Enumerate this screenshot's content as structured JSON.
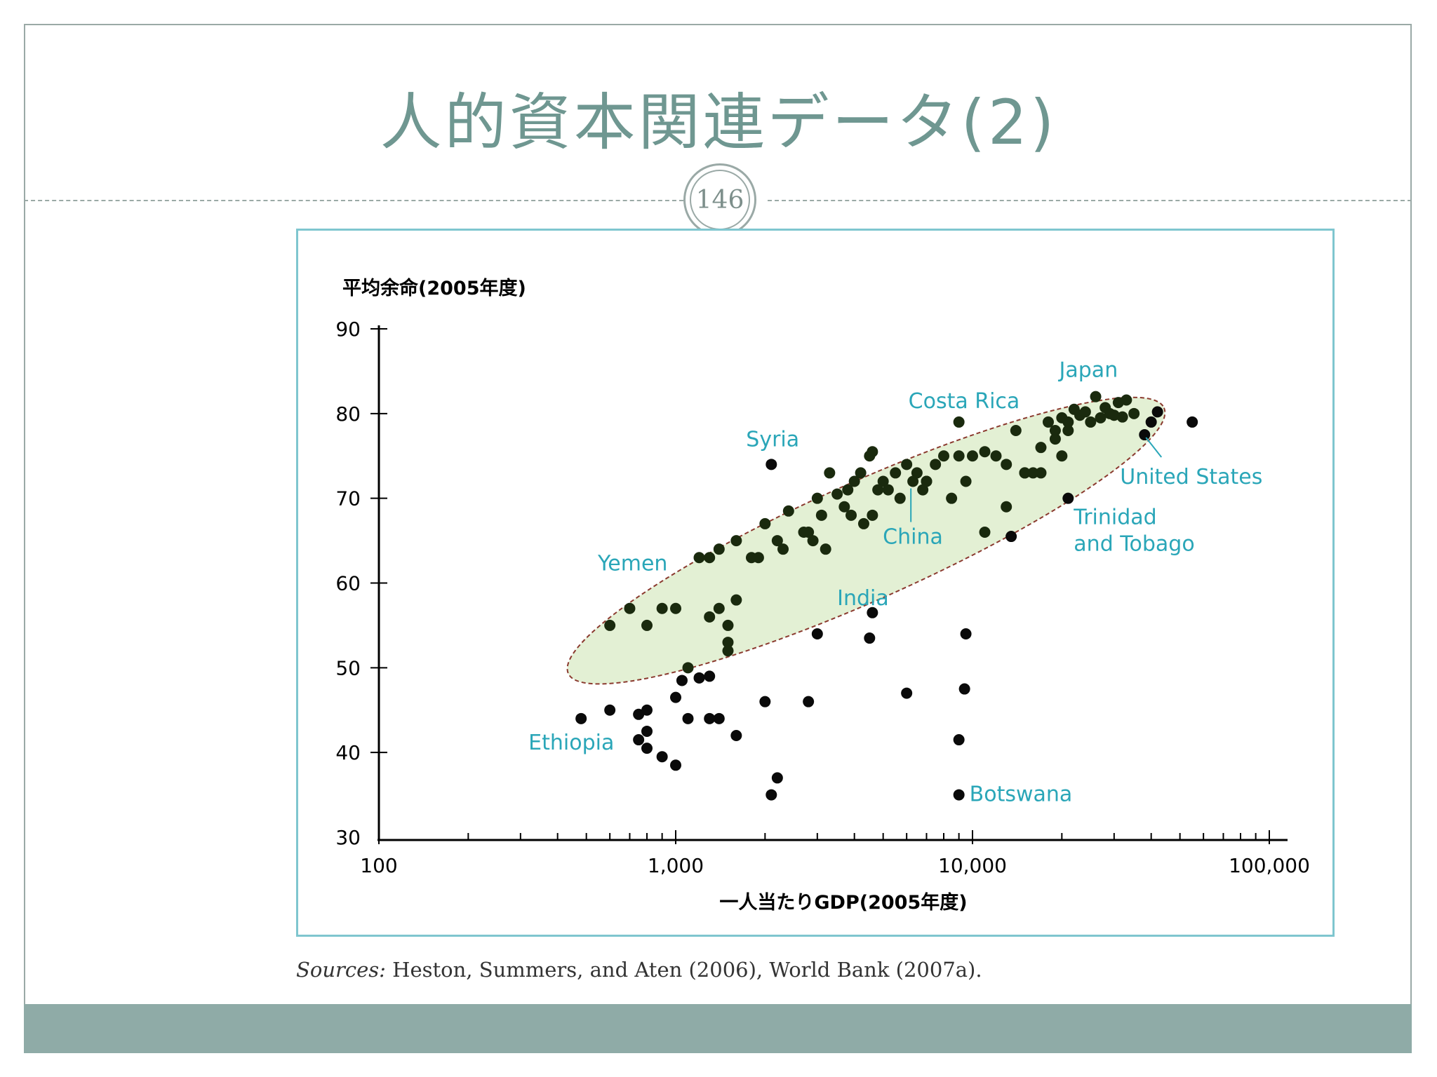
{
  "slide": {
    "title": "人的資本関連データ(2)",
    "page_number": "146",
    "sources_label": "Sources:",
    "sources_text": " Heston, Summers, and Aten (2006), World Bank (2007a)."
  },
  "colors": {
    "title": "#6f9791",
    "frame": "#7fc6cf",
    "footer": "#8faba7",
    "annotation": "#2aa6b8",
    "ellipse_fill": "#e3f0d4",
    "ellipse_stroke": "#8b3a2f",
    "point": "#0a0a0a",
    "point_in_ellipse": "#1a2a0e"
  },
  "chart_data": {
    "type": "scatter",
    "title": "",
    "ylabel": "平均余命(2005年度)",
    "xlabel": "一人当たりGDP(2005年度)",
    "x_scale": "log",
    "xlim": [
      100,
      120000
    ],
    "ylim": [
      30,
      90
    ],
    "x_ticks": [
      100,
      1000,
      10000,
      100000
    ],
    "x_tick_labels": [
      "100",
      "1,000",
      "10,000",
      "100,000"
    ],
    "y_ticks": [
      30,
      40,
      50,
      60,
      70,
      80,
      90
    ],
    "y_tick_labels": [
      "30",
      "40",
      "50",
      "60",
      "70",
      "80",
      "90"
    ],
    "highlight_ellipse": {
      "x_range": [
        480,
        40000
      ],
      "y_range": [
        50,
        80
      ]
    },
    "labels": [
      {
        "text": "Japan",
        "x": 26000,
        "y": 82
      },
      {
        "text": "Costa Rica",
        "x": 9000,
        "y": 79
      },
      {
        "text": "Syria",
        "x": 2100,
        "y": 74
      },
      {
        "text": "United States",
        "x": 38000,
        "y": 78
      },
      {
        "text": "Trinidad",
        "x": 21000,
        "y": 70
      },
      {
        "text": "and Tobago",
        "x": 21000,
        "y": 70
      },
      {
        "text": "China",
        "x": 6200,
        "y": 72
      },
      {
        "text": "India",
        "x": 3500,
        "y": 64
      },
      {
        "text": "Yemen",
        "x": 1050,
        "y": 62
      },
      {
        "text": "Ethiopia",
        "x": 480,
        "y": 44
      },
      {
        "text": "Botswana",
        "x": 9000,
        "y": 35
      }
    ],
    "series": [
      {
        "points": [
          [
            26000,
            82
          ],
          [
            22000,
            80.5
          ],
          [
            24000,
            80.2
          ],
          [
            28000,
            80.7
          ],
          [
            31000,
            81.3
          ],
          [
            33000,
            81.6
          ],
          [
            29000,
            80
          ],
          [
            27000,
            79.5
          ],
          [
            25000,
            79
          ],
          [
            30000,
            79.8
          ],
          [
            32000,
            79.6
          ],
          [
            35000,
            80
          ],
          [
            23000,
            79.8
          ],
          [
            20000,
            79.5
          ],
          [
            18000,
            79
          ],
          [
            19000,
            78
          ],
          [
            21000,
            78
          ],
          [
            17000,
            76
          ],
          [
            14000,
            78
          ],
          [
            12000,
            75
          ],
          [
            11000,
            75.5
          ],
          [
            10000,
            75
          ],
          [
            13000,
            74
          ],
          [
            15000,
            73
          ],
          [
            16000,
            73
          ],
          [
            9000,
            79
          ],
          [
            8000,
            75
          ],
          [
            7500,
            74
          ],
          [
            7000,
            72
          ],
          [
            6500,
            73
          ],
          [
            6000,
            74
          ],
          [
            5500,
            73
          ],
          [
            5000,
            72
          ],
          [
            4800,
            71
          ],
          [
            4500,
            75
          ],
          [
            4600,
            75.5
          ],
          [
            4200,
            73
          ],
          [
            4000,
            72
          ],
          [
            3800,
            71
          ],
          [
            3500,
            70.5
          ],
          [
            3300,
            73
          ],
          [
            3000,
            70
          ],
          [
            3100,
            68
          ],
          [
            2800,
            66
          ],
          [
            2400,
            68.5
          ],
          [
            2200,
            65
          ],
          [
            2300,
            64
          ],
          [
            2000,
            67
          ],
          [
            1800,
            63
          ],
          [
            1900,
            63
          ],
          [
            1600,
            65
          ],
          [
            1400,
            64
          ],
          [
            1300,
            63
          ],
          [
            1200,
            63
          ],
          [
            1000,
            57
          ],
          [
            900,
            57
          ],
          [
            800,
            55
          ],
          [
            700,
            57
          ],
          [
            600,
            55
          ],
          [
            1100,
            50
          ],
          [
            1300,
            56
          ],
          [
            1400,
            57
          ],
          [
            1500,
            55
          ],
          [
            1500,
            52
          ],
          [
            1500,
            53
          ],
          [
            1600,
            58
          ],
          [
            9000,
            75
          ],
          [
            8500,
            70
          ],
          [
            7000,
            72
          ],
          [
            6800,
            71
          ],
          [
            6300,
            72
          ],
          [
            5700,
            70
          ],
          [
            5200,
            71
          ],
          [
            4600,
            68
          ],
          [
            4300,
            67
          ],
          [
            3900,
            68
          ],
          [
            3700,
            69
          ],
          [
            2700,
            66
          ],
          [
            2900,
            65
          ],
          [
            3200,
            64
          ],
          [
            11000,
            66
          ],
          [
            13000,
            69
          ],
          [
            15000,
            73
          ],
          [
            17000,
            73
          ],
          [
            20000,
            75
          ],
          [
            9500,
            72
          ],
          [
            21000,
            79
          ],
          [
            19000,
            77
          ]
        ]
      },
      {
        "points": [
          [
            2100,
            74
          ],
          [
            3000,
            54
          ],
          [
            4600,
            56.5
          ],
          [
            4500,
            53.5
          ],
          [
            9500,
            54
          ],
          [
            9400,
            47.5
          ],
          [
            6000,
            47
          ],
          [
            2800,
            46
          ],
          [
            2000,
            46
          ],
          [
            1600,
            42
          ],
          [
            1400,
            44
          ],
          [
            1300,
            44
          ],
          [
            1100,
            44
          ],
          [
            1000,
            46.5
          ],
          [
            1000,
            38.5
          ],
          [
            900,
            39.5
          ],
          [
            800,
            40.5
          ],
          [
            800,
            42.5
          ],
          [
            750,
            41.5
          ],
          [
            800,
            45
          ],
          [
            750,
            44.5
          ],
          [
            600,
            45
          ],
          [
            480,
            44
          ],
          [
            1050,
            48.5
          ],
          [
            1200,
            48.8
          ],
          [
            1300,
            49
          ],
          [
            2100,
            35
          ],
          [
            2200,
            37
          ],
          [
            9000,
            41.5
          ],
          [
            9000,
            35
          ],
          [
            38000,
            77.5
          ],
          [
            40000,
            79
          ],
          [
            42000,
            80.2
          ],
          [
            55000,
            79
          ],
          [
            21000,
            70
          ],
          [
            13500,
            65.5
          ]
        ]
      }
    ]
  }
}
